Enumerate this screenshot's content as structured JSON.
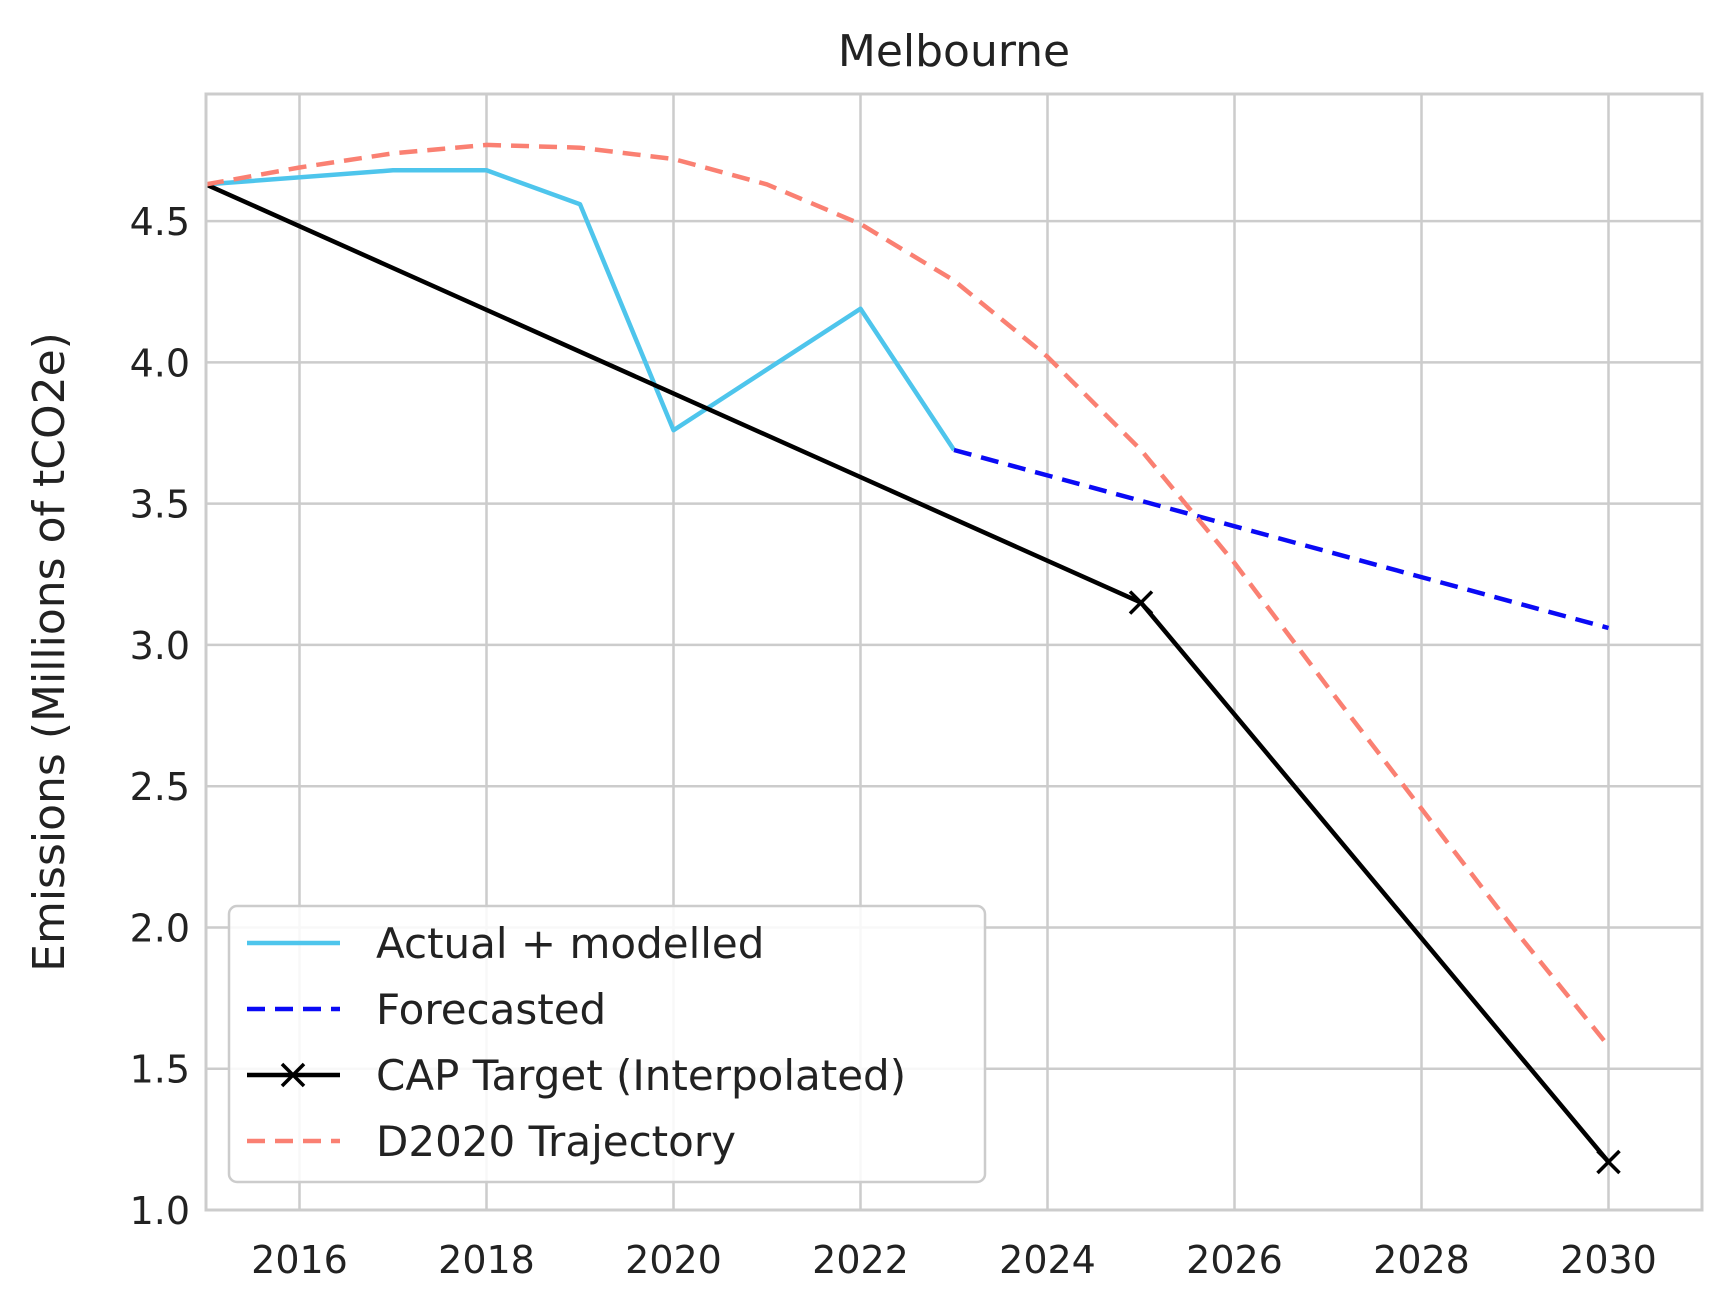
{
  "chart_data": {
    "type": "line",
    "title": "Melbourne",
    "xlabel": "",
    "ylabel": "Emissions (Millions of tCO2e)",
    "xlim": [
      2015,
      2031
    ],
    "ylim": [
      1.0,
      4.95
    ],
    "xticks": [
      2016,
      2018,
      2020,
      2022,
      2024,
      2026,
      2028,
      2030
    ],
    "yticks": [
      1.0,
      1.5,
      2.0,
      2.5,
      3.0,
      3.5,
      4.0,
      4.5
    ],
    "xtick_labels": [
      "2016",
      "2018",
      "2020",
      "2022",
      "2024",
      "2026",
      "2028",
      "2030"
    ],
    "ytick_labels": [
      "1.0",
      "1.5",
      "2.0",
      "2.5",
      "3.0",
      "3.5",
      "4.0",
      "4.5"
    ],
    "grid": true,
    "legend_position": "lower-left",
    "series": [
      {
        "name": "Actual + modelled",
        "color": "#4EC5EC",
        "style": "solid",
        "marker": "none",
        "x": [
          2015,
          2017,
          2018,
          2019,
          2020,
          2022,
          2023
        ],
        "y": [
          4.63,
          4.68,
          4.68,
          4.56,
          3.76,
          4.19,
          3.69
        ]
      },
      {
        "name": "Forecasted",
        "color": "#0A0AF5",
        "style": "dashed",
        "marker": "none",
        "x": [
          2023,
          2025,
          2030
        ],
        "y": [
          3.69,
          3.51,
          3.06
        ]
      },
      {
        "name": "CAP Target (Interpolated)",
        "color": "#000000",
        "style": "solid",
        "marker": "x",
        "marker_x": [
          2025,
          2030
        ],
        "x": [
          2015,
          2025,
          2030
        ],
        "y": [
          4.63,
          3.15,
          1.17
        ]
      },
      {
        "name": "D2020 Trajectory",
        "color": "#FA8072",
        "style": "dashed",
        "marker": "none",
        "x": [
          2015,
          2016,
          2017,
          2018,
          2019,
          2020,
          2021,
          2022,
          2023,
          2024,
          2025,
          2026,
          2027,
          2028,
          2029,
          2030
        ],
        "y": [
          4.63,
          4.69,
          4.74,
          4.77,
          4.76,
          4.72,
          4.63,
          4.49,
          4.29,
          4.02,
          3.69,
          3.29,
          2.85,
          2.42,
          1.99,
          1.58
        ]
      }
    ]
  }
}
